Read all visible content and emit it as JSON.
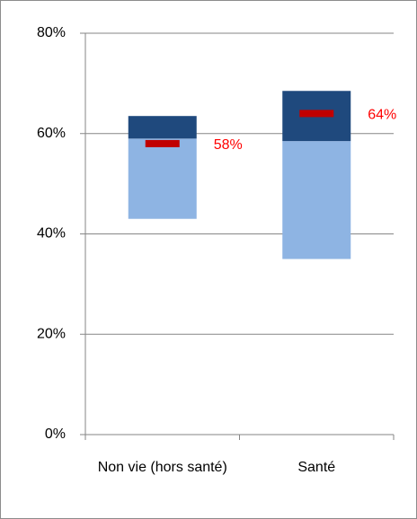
{
  "chart_data": {
    "type": "floating_bar",
    "categories": [
      "Non vie (hors santé)",
      "Santé"
    ],
    "series": [
      {
        "color": "none",
        "values": [
          43,
          35
        ]
      },
      {
        "color": "#8eb4e3",
        "values": [
          16,
          23.5
        ]
      },
      {
        "color": "#1f497d",
        "values": [
          4.5,
          10
        ]
      }
    ],
    "markers": {
      "color": "#c00000",
      "values": [
        58,
        64
      ],
      "value_labels": [
        "58%",
        "64%"
      ],
      "label_color": "#ff0000"
    },
    "ylim": [
      0,
      80
    ],
    "yticks": [
      {
        "value": 0,
        "label": "0%"
      },
      {
        "value": 20,
        "label": "20%"
      },
      {
        "value": 40,
        "label": "40%"
      },
      {
        "value": 60,
        "label": "60%"
      },
      {
        "value": 80,
        "label": "80%"
      }
    ],
    "grid": true
  }
}
